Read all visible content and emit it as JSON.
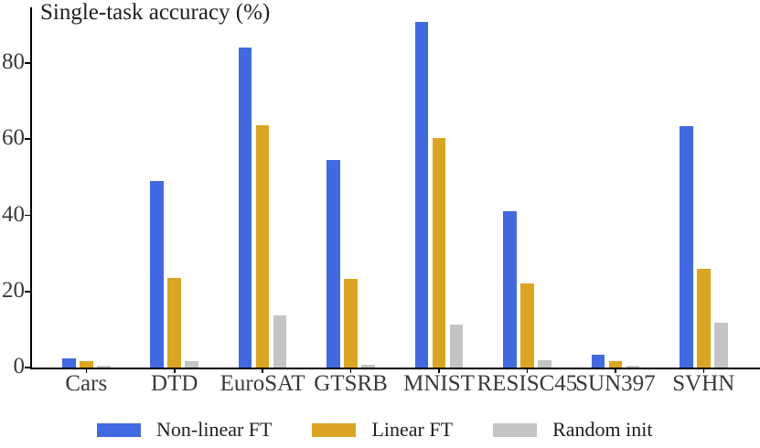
{
  "chart_data": {
    "type": "bar",
    "title": "Single-task accuracy (%)",
    "categories": [
      "Cars",
      "DTD",
      "EuroSAT",
      "GTSRB",
      "MNIST",
      "RESISC45",
      "SUN397",
      "SVHN"
    ],
    "series": [
      {
        "name": "Non-linear FT",
        "color": "#4169E1",
        "values": [
          2.5,
          49.0,
          84.0,
          54.5,
          90.8,
          41.0,
          3.3,
          63.5
        ]
      },
      {
        "name": "Linear FT",
        "color": "#DAA520",
        "values": [
          1.6,
          23.5,
          63.7,
          23.3,
          60.2,
          22.0,
          1.7,
          26.0
        ]
      },
      {
        "name": "Random init",
        "color": "#C4C4C4",
        "values": [
          0.4,
          1.8,
          13.7,
          0.8,
          11.3,
          1.9,
          0.4,
          11.7
        ]
      }
    ],
    "ylabel": "",
    "xlabel": "",
    "yticks": [
      0,
      20,
      40,
      60,
      80
    ],
    "ylim": [
      0,
      94.2
    ],
    "grid": false,
    "legend_position": "bottom"
  }
}
